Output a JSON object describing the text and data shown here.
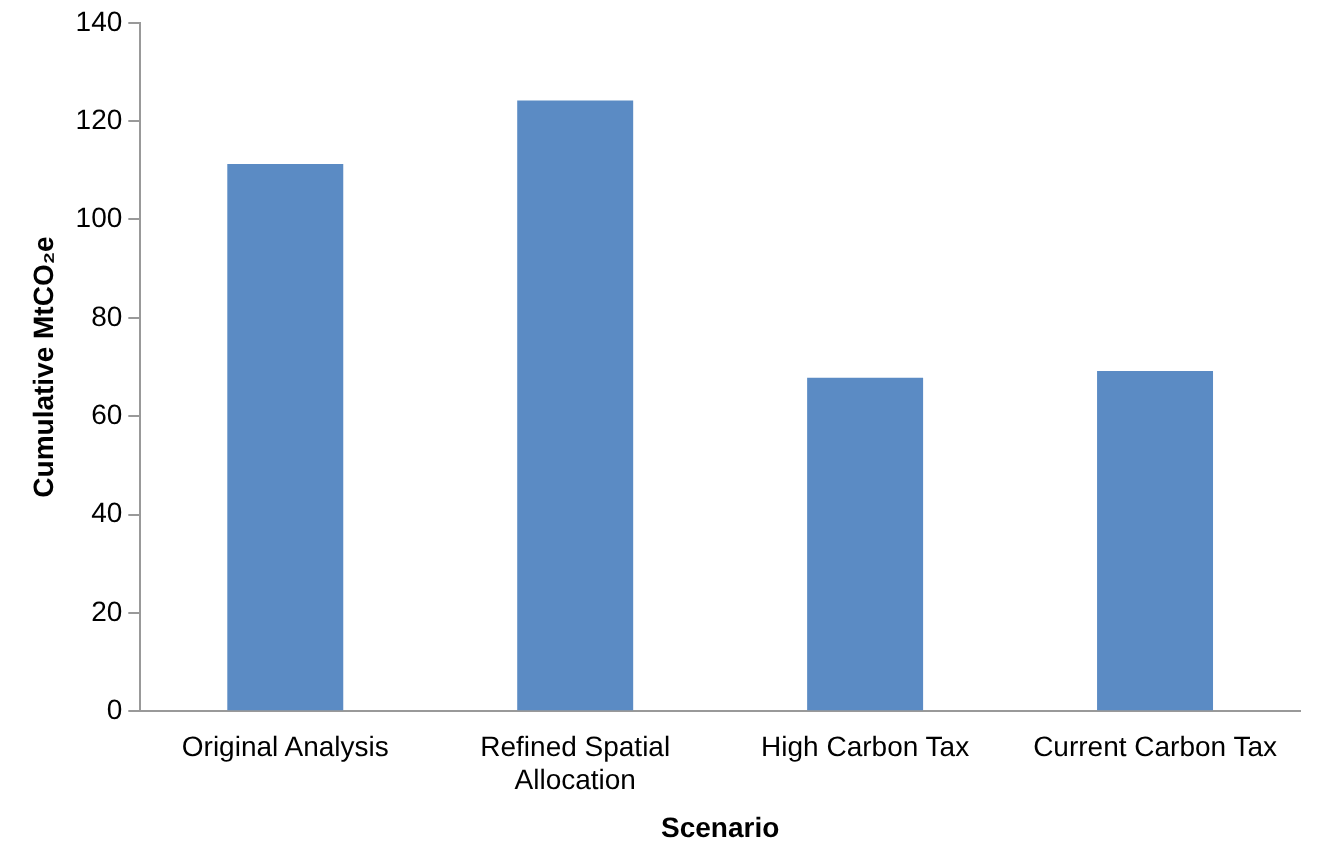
{
  "chart_data": {
    "type": "bar",
    "xlabel": "Scenario",
    "ylabel": "Cumulative MtCO₂e",
    "categories": [
      "Original Analysis",
      "Refined Spatial Allocation",
      "High Carbon Tax",
      "Current Carbon Tax"
    ],
    "values": [
      111.3,
      124.2,
      67.8,
      69.2
    ],
    "color": "#5b8bc4",
    "ylim": [
      0,
      140
    ],
    "yticks": [
      0,
      20,
      40,
      60,
      80,
      100,
      120,
      140
    ],
    "grid": false,
    "legend": false
  }
}
